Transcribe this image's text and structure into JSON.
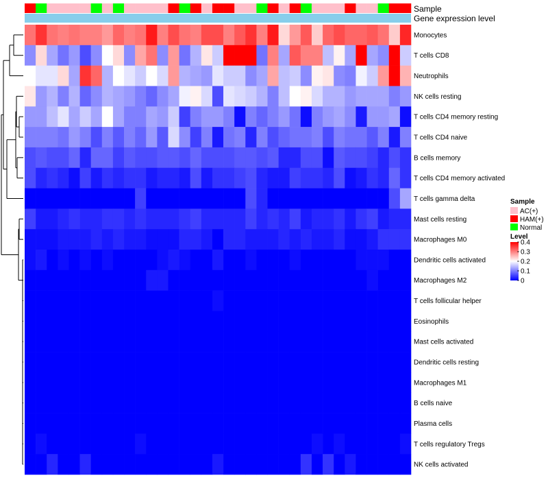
{
  "chart_data": {
    "type": "heatmap",
    "annotation_labels": [
      "Sample",
      "Gene expression level"
    ],
    "sample_legend": {
      "title": "Sample",
      "entries": [
        {
          "label": "AC(+)",
          "color": "#ffc0cb"
        },
        {
          "label": "HAM(+)",
          "color": "#ff0000"
        },
        {
          "label": "Normal",
          "color": "#00ff00"
        }
      ]
    },
    "level_legend": {
      "title": "Level",
      "ticks": [
        "0.4",
        "0.3",
        "0.2",
        "0.1",
        "0"
      ],
      "range": [
        0,
        0.4
      ]
    },
    "colors": {
      "low": "#0000ff",
      "mid": "#ffffff",
      "high": "#ff0000",
      "expression_bar": "#87ceeb"
    },
    "sample_groups": [
      "HAM",
      "Normal",
      "AC",
      "AC",
      "AC",
      "AC",
      "Normal",
      "AC",
      "Normal",
      "AC",
      "AC",
      "AC",
      "AC",
      "HAM",
      "Normal",
      "HAM",
      "AC",
      "HAM",
      "HAM",
      "AC",
      "AC",
      "Normal",
      "HAM",
      "AC",
      "HAM",
      "Normal",
      "AC",
      "AC",
      "AC",
      "HAM",
      "AC",
      "AC",
      "Normal",
      "HAM",
      "HAM"
    ],
    "rows": [
      {
        "name": "Monocytes",
        "values": [
          0.31,
          0.36,
          0.31,
          0.3,
          0.31,
          0.3,
          0.3,
          0.28,
          0.32,
          0.3,
          0.31,
          0.38,
          0.3,
          0.34,
          0.31,
          0.3,
          0.34,
          0.34,
          0.3,
          0.33,
          0.36,
          0.3,
          0.38,
          0.23,
          0.28,
          0.33,
          0.24,
          0.32,
          0.34,
          0.32,
          0.32,
          0.33,
          0.31,
          0.24,
          0.37
        ]
      },
      {
        "name": "T cells CD8",
        "values": [
          0.11,
          0.23,
          0.13,
          0.09,
          0.12,
          0.06,
          0.11,
          0.2,
          0.23,
          0.11,
          0.27,
          0.31,
          0.11,
          0.28,
          0.09,
          0.14,
          0.22,
          0.16,
          0.43,
          0.43,
          0.41,
          0.09,
          0.3,
          0.13,
          0.33,
          0.3,
          0.3,
          0.15,
          0.21,
          0.13,
          0.43,
          0.13,
          0.11,
          0.43,
          0.16
        ]
      },
      {
        "name": "Neutrophils",
        "values": [
          0.2,
          0.18,
          0.18,
          0.23,
          0.13,
          0.36,
          0.32,
          0.14,
          0.2,
          0.18,
          0.16,
          0.2,
          0.17,
          0.28,
          0.14,
          0.13,
          0.12,
          0.18,
          0.16,
          0.16,
          0.11,
          0.13,
          0.27,
          0.15,
          0.16,
          0.11,
          0.21,
          0.22,
          0.11,
          0.1,
          0.19,
          0.16,
          0.28,
          0.4,
          0.26
        ]
      },
      {
        "name": "NK cells resting",
        "values": [
          0.22,
          0.12,
          0.14,
          0.1,
          0.14,
          0.08,
          0.11,
          0.14,
          0.13,
          0.12,
          0.1,
          0.08,
          0.11,
          0.13,
          0.19,
          0.21,
          0.17,
          0.06,
          0.18,
          0.17,
          0.16,
          0.14,
          0.1,
          0.15,
          0.2,
          0.21,
          0.17,
          0.14,
          0.14,
          0.12,
          0.13,
          0.13,
          0.13,
          0.1,
          0.12
        ]
      },
      {
        "name": "T cells CD4 memory resting",
        "values": [
          0.12,
          0.12,
          0.15,
          0.18,
          0.13,
          0.16,
          0.13,
          0.2,
          0.13,
          0.1,
          0.1,
          0.13,
          0.12,
          0.16,
          0.05,
          0.1,
          0.12,
          0.12,
          0.1,
          0.01,
          0.1,
          0.08,
          0.1,
          0.12,
          0.09,
          0.01,
          0.1,
          0.12,
          0.13,
          0.11,
          0.02,
          0.12,
          0.12,
          0.13,
          0.01
        ]
      },
      {
        "name": "T cells CD4 naive",
        "values": [
          0.1,
          0.1,
          0.1,
          0.09,
          0.12,
          0.1,
          0.06,
          0.1,
          0.07,
          0.1,
          0.08,
          0.12,
          0.07,
          0.17,
          0.11,
          0.05,
          0.1,
          0.02,
          0.09,
          0.1,
          0.03,
          0.1,
          0.06,
          0.08,
          0.09,
          0.09,
          0.1,
          0.06,
          0.1,
          0.09,
          0.09,
          0.07,
          0.1,
          0.02,
          0.1
        ]
      },
      {
        "name": "B cells memory",
        "values": [
          0.06,
          0.07,
          0.06,
          0.06,
          0.08,
          0.03,
          0.08,
          0.08,
          0.05,
          0.07,
          0.06,
          0.06,
          0.07,
          0.07,
          0.06,
          0.08,
          0.06,
          0.06,
          0.06,
          0.07,
          0.07,
          0.06,
          0.07,
          0.03,
          0.03,
          0.06,
          0.06,
          0.01,
          0.07,
          0.06,
          0.06,
          0.05,
          0.03,
          0.06,
          0.04
        ]
      },
      {
        "name": "T cells CD4 memory activated",
        "values": [
          0.06,
          0.03,
          0.04,
          0.03,
          0.01,
          0.05,
          0.02,
          0.04,
          0.03,
          0.04,
          0.04,
          0.02,
          0.03,
          0.03,
          0.02,
          0.06,
          0.02,
          0.04,
          0.04,
          0.05,
          0.06,
          0.03,
          0.02,
          0.02,
          0.05,
          0.04,
          0.04,
          0.03,
          0.06,
          0.01,
          0.02,
          0.04,
          0.03,
          0.08,
          0.04
        ]
      },
      {
        "name": "T cells gamma delta",
        "values": [
          0.0,
          0.0,
          0.0,
          0.0,
          0.0,
          0.0,
          0.0,
          0.0,
          0.0,
          0.0,
          0.05,
          0.0,
          0.0,
          0.0,
          0.0,
          0.0,
          0.0,
          0.0,
          0.0,
          0.0,
          0.06,
          0.03,
          0.0,
          0.0,
          0.0,
          0.0,
          0.0,
          0.0,
          0.0,
          0.0,
          0.0,
          0.0,
          0.0,
          0.06,
          0.13
        ]
      },
      {
        "name": "Mast cells resting",
        "values": [
          0.05,
          0.02,
          0.02,
          0.03,
          0.04,
          0.03,
          0.03,
          0.04,
          0.04,
          0.03,
          0.04,
          0.03,
          0.03,
          0.03,
          0.04,
          0.05,
          0.03,
          0.03,
          0.03,
          0.03,
          0.05,
          0.03,
          0.04,
          0.03,
          0.05,
          0.02,
          0.03,
          0.03,
          0.04,
          0.02,
          0.04,
          0.05,
          0.02,
          0.03,
          0.03
        ]
      },
      {
        "name": "Macrophages M0",
        "values": [
          0.01,
          0.01,
          0.01,
          0.02,
          0.02,
          0.02,
          0.03,
          0.02,
          0.03,
          0.02,
          0.02,
          0.01,
          0.01,
          0.01,
          0.03,
          0.03,
          0.02,
          0.0,
          0.03,
          0.03,
          0.02,
          0.02,
          0.02,
          0.03,
          0.02,
          0.03,
          0.02,
          0.02,
          0.03,
          0.01,
          0.01,
          0.02,
          0.04,
          0.04,
          0.04
        ]
      },
      {
        "name": "Dendritic cells activated",
        "values": [
          0.01,
          0.02,
          0.0,
          0.01,
          0.0,
          0.01,
          0.0,
          0.01,
          0.0,
          0.0,
          0.0,
          0.0,
          0.01,
          0.02,
          0.01,
          0.0,
          0.0,
          0.02,
          0.0,
          0.0,
          0.01,
          0.0,
          0.0,
          0.0,
          0.01,
          0.0,
          0.0,
          0.0,
          0.0,
          0.0,
          0.01,
          0.01,
          0.01,
          0.0,
          0.0
        ]
      },
      {
        "name": "Macrophages M2",
        "values": [
          0.0,
          0.0,
          0.0,
          0.0,
          0.0,
          0.0,
          0.0,
          0.0,
          0.0,
          0.0,
          0.0,
          0.02,
          0.02,
          0.0,
          0.0,
          0.0,
          0.0,
          0.0,
          0.0,
          0.0,
          0.0,
          0.0,
          0.0,
          0.0,
          0.0,
          0.0,
          0.0,
          0.0,
          0.0,
          0.0,
          0.0,
          0.01,
          0.0,
          0.0,
          0.0
        ]
      },
      {
        "name": "T cells follicular helper",
        "values": [
          0.0,
          0.0,
          0.0,
          0.0,
          0.0,
          0.0,
          0.0,
          0.0,
          0.0,
          0.0,
          0.0,
          0.0,
          0.0,
          0.0,
          0.0,
          0.0,
          0.0,
          0.01,
          0.0,
          0.0,
          0.0,
          0.0,
          0.0,
          0.0,
          0.0,
          0.0,
          0.0,
          0.0,
          0.0,
          0.0,
          0.0,
          0.0,
          0.0,
          0.0,
          0.0
        ]
      },
      {
        "name": "Eosinophils",
        "values": [
          0.0,
          0.0,
          0.0,
          0.0,
          0.0,
          0.0,
          0.0,
          0.0,
          0.0,
          0.0,
          0.0,
          0.0,
          0.0,
          0.0,
          0.0,
          0.0,
          0.0,
          0.0,
          0.0,
          0.0,
          0.0,
          0.0,
          0.0,
          0.0,
          0.0,
          0.0,
          0.0,
          0.0,
          0.0,
          0.0,
          0.0,
          0.0,
          0.0,
          0.0,
          0.0
        ]
      },
      {
        "name": "Mast cells activated",
        "values": [
          0.0,
          0.0,
          0.0,
          0.0,
          0.0,
          0.0,
          0.0,
          0.0,
          0.0,
          0.0,
          0.0,
          0.0,
          0.0,
          0.0,
          0.0,
          0.0,
          0.0,
          0.0,
          0.0,
          0.0,
          0.0,
          0.0,
          0.0,
          0.0,
          0.0,
          0.0,
          0.0,
          0.0,
          0.0,
          0.0,
          0.0,
          0.0,
          0.0,
          0.0,
          0.0
        ]
      },
      {
        "name": "Dendritic cells resting",
        "values": [
          0.0,
          0.0,
          0.0,
          0.0,
          0.0,
          0.0,
          0.0,
          0.0,
          0.0,
          0.0,
          0.0,
          0.0,
          0.0,
          0.0,
          0.0,
          0.0,
          0.0,
          0.0,
          0.0,
          0.0,
          0.0,
          0.0,
          0.0,
          0.0,
          0.0,
          0.0,
          0.0,
          0.0,
          0.0,
          0.0,
          0.0,
          0.0,
          0.0,
          0.0,
          0.0
        ]
      },
      {
        "name": "Macrophages M1",
        "values": [
          0.0,
          0.0,
          0.0,
          0.0,
          0.0,
          0.0,
          0.0,
          0.0,
          0.0,
          0.0,
          0.0,
          0.0,
          0.0,
          0.0,
          0.0,
          0.0,
          0.0,
          0.0,
          0.0,
          0.0,
          0.0,
          0.0,
          0.0,
          0.0,
          0.0,
          0.0,
          0.0,
          0.0,
          0.0,
          0.0,
          0.0,
          0.0,
          0.0,
          0.0,
          0.0
        ]
      },
      {
        "name": "B cells naive",
        "values": [
          0.0,
          0.0,
          0.0,
          0.0,
          0.0,
          0.0,
          0.0,
          0.0,
          0.0,
          0.0,
          0.0,
          0.0,
          0.0,
          0.0,
          0.0,
          0.0,
          0.0,
          0.0,
          0.0,
          0.0,
          0.0,
          0.0,
          0.0,
          0.0,
          0.0,
          0.0,
          0.0,
          0.0,
          0.0,
          0.0,
          0.0,
          0.0,
          0.0,
          0.0,
          0.0
        ]
      },
      {
        "name": "Plasma cells",
        "values": [
          0.0,
          0.0,
          0.0,
          0.0,
          0.0,
          0.0,
          0.0,
          0.0,
          0.0,
          0.0,
          0.0,
          0.0,
          0.0,
          0.0,
          0.0,
          0.0,
          0.0,
          0.0,
          0.0,
          0.0,
          0.0,
          0.0,
          0.0,
          0.0,
          0.0,
          0.0,
          0.0,
          0.0,
          0.0,
          0.0,
          0.0,
          0.0,
          0.0,
          0.0,
          0.0
        ]
      },
      {
        "name": "T cells regulatory  Tregs",
        "values": [
          0.0,
          0.01,
          0.0,
          0.0,
          0.0,
          0.0,
          0.0,
          0.0,
          0.0,
          0.0,
          0.01,
          0.0,
          0.0,
          0.0,
          0.0,
          0.0,
          0.0,
          0.0,
          0.0,
          0.0,
          0.0,
          0.0,
          0.0,
          0.0,
          0.0,
          0.0,
          0.01,
          0.0,
          0.01,
          0.0,
          0.0,
          0.0,
          0.0,
          0.0,
          0.01
        ]
      },
      {
        "name": "NK cells activated",
        "values": [
          0.0,
          0.0,
          0.03,
          0.0,
          0.0,
          0.03,
          0.0,
          0.0,
          0.0,
          0.0,
          0.0,
          0.0,
          0.0,
          0.0,
          0.0,
          0.0,
          0.0,
          0.02,
          0.0,
          0.0,
          0.0,
          0.0,
          0.0,
          0.0,
          0.0,
          0.04,
          0.0,
          0.04,
          0.0,
          0.02,
          0.0,
          0.0,
          0.0,
          0.0,
          0.0
        ]
      }
    ]
  }
}
